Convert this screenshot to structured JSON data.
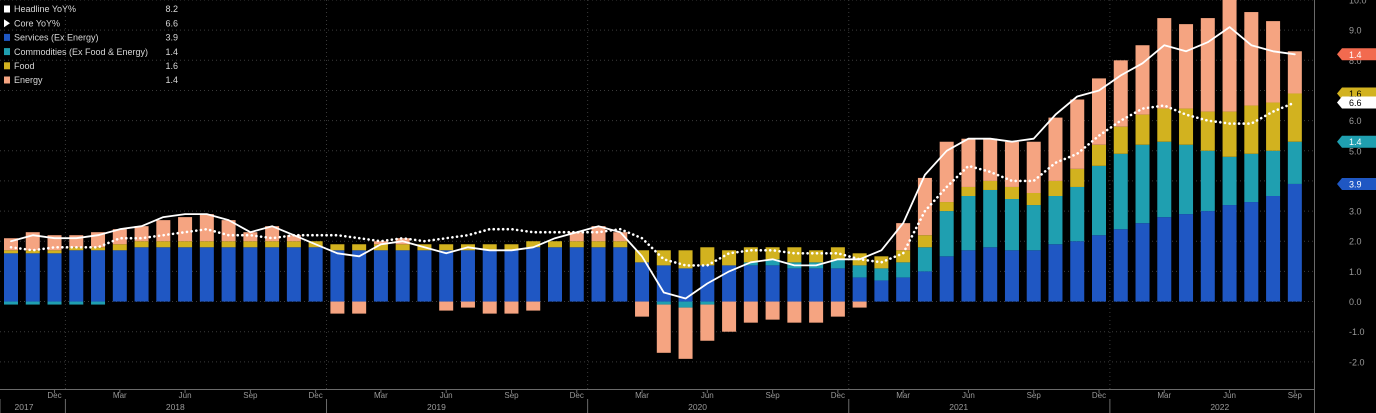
{
  "chart_data": {
    "type": "bar",
    "categories": [
      "2017-10",
      "2017-11",
      "2017-12",
      "2018-01",
      "2018-02",
      "2018-03",
      "2018-04",
      "2018-05",
      "2018-06",
      "2018-07",
      "2018-08",
      "2018-09",
      "2018-10",
      "2018-11",
      "2018-12",
      "2019-01",
      "2019-02",
      "2019-03",
      "2019-04",
      "2019-05",
      "2019-06",
      "2019-07",
      "2019-08",
      "2019-09",
      "2019-10",
      "2019-11",
      "2019-12",
      "2020-01",
      "2020-02",
      "2020-03",
      "2020-04",
      "2020-05",
      "2020-06",
      "2020-07",
      "2020-08",
      "2020-09",
      "2020-10",
      "2020-11",
      "2020-12",
      "2021-01",
      "2021-02",
      "2021-03",
      "2021-04",
      "2021-05",
      "2021-06",
      "2021-07",
      "2021-08",
      "2021-09",
      "2021-10",
      "2021-11",
      "2021-12",
      "2022-01",
      "2022-02",
      "2022-03",
      "2022-04",
      "2022-05",
      "2022-06",
      "2022-07",
      "2022-08",
      "2022-09"
    ],
    "series": [
      {
        "name": "Headline YoY%",
        "kind": "line",
        "color": "#ffffff",
        "values": [
          2.0,
          2.2,
          2.1,
          2.1,
          2.2,
          2.4,
          2.5,
          2.8,
          2.9,
          2.9,
          2.7,
          2.3,
          2.5,
          2.2,
          1.9,
          1.6,
          1.5,
          1.9,
          2.0,
          1.8,
          1.6,
          1.8,
          1.7,
          1.7,
          1.8,
          2.1,
          2.3,
          2.5,
          2.3,
          1.5,
          0.3,
          0.1,
          0.6,
          1.0,
          1.3,
          1.4,
          1.2,
          1.2,
          1.4,
          1.4,
          1.7,
          2.6,
          4.2,
          5.0,
          5.4,
          5.4,
          5.3,
          5.4,
          6.2,
          6.8,
          7.0,
          7.5,
          7.9,
          8.5,
          8.3,
          8.6,
          9.1,
          8.5,
          8.3,
          8.2
        ]
      },
      {
        "name": "Core YoY%",
        "kind": "line",
        "color": "#ffffff",
        "values": [
          1.8,
          1.7,
          1.8,
          1.8,
          1.8,
          2.1,
          2.1,
          2.2,
          2.3,
          2.4,
          2.2,
          2.2,
          2.1,
          2.2,
          2.2,
          2.2,
          2.1,
          2.0,
          2.1,
          2.0,
          2.1,
          2.2,
          2.4,
          2.4,
          2.3,
          2.3,
          2.3,
          2.3,
          2.4,
          2.1,
          1.4,
          1.2,
          1.2,
          1.6,
          1.7,
          1.7,
          1.6,
          1.6,
          1.6,
          1.4,
          1.3,
          1.6,
          3.0,
          3.8,
          4.5,
          4.3,
          4.0,
          4.0,
          4.6,
          4.9,
          5.5,
          6.0,
          6.4,
          6.5,
          6.2,
          6.0,
          5.9,
          5.9,
          6.3,
          6.6
        ]
      },
      {
        "name": "Services (Ex Energy)",
        "kind": "bar",
        "color": "#1f57c3",
        "values": [
          1.6,
          1.6,
          1.6,
          1.7,
          1.7,
          1.7,
          1.8,
          1.8,
          1.8,
          1.8,
          1.8,
          1.8,
          1.8,
          1.8,
          1.8,
          1.7,
          1.7,
          1.7,
          1.7,
          1.7,
          1.7,
          1.7,
          1.7,
          1.7,
          1.8,
          1.8,
          1.8,
          1.8,
          1.8,
          1.3,
          1.2,
          1.1,
          1.2,
          1.2,
          1.2,
          1.2,
          1.1,
          1.1,
          1.1,
          0.8,
          0.7,
          0.8,
          1.0,
          1.5,
          1.7,
          1.8,
          1.7,
          1.7,
          1.9,
          2.0,
          2.2,
          2.4,
          2.6,
          2.8,
          2.9,
          3.0,
          3.2,
          3.3,
          3.5,
          3.9
        ]
      },
      {
        "name": "Commodities (Ex Food & Energy)",
        "kind": "bar",
        "color": "#1f9fb0",
        "values": [
          -0.1,
          -0.1,
          -0.1,
          -0.1,
          -0.1,
          0.0,
          0.0,
          0.0,
          0.0,
          0.0,
          0.0,
          0.0,
          0.0,
          0.0,
          0.0,
          0.0,
          0.0,
          0.0,
          0.0,
          0.0,
          0.0,
          0.0,
          0.0,
          0.0,
          0.0,
          0.0,
          0.0,
          0.0,
          0.0,
          0.0,
          -0.1,
          -0.2,
          -0.1,
          0.0,
          0.1,
          0.2,
          0.2,
          0.2,
          0.3,
          0.4,
          0.4,
          0.5,
          0.8,
          1.5,
          1.8,
          1.9,
          1.7,
          1.5,
          1.6,
          1.8,
          2.3,
          2.5,
          2.6,
          2.5,
          2.3,
          2.0,
          1.6,
          1.6,
          1.5,
          1.4
        ]
      },
      {
        "name": "Food",
        "kind": "bar",
        "color": "#d2b21f",
        "values": [
          0.1,
          0.1,
          0.1,
          0.1,
          0.1,
          0.2,
          0.2,
          0.2,
          0.2,
          0.2,
          0.2,
          0.2,
          0.2,
          0.2,
          0.2,
          0.2,
          0.2,
          0.2,
          0.2,
          0.2,
          0.2,
          0.2,
          0.2,
          0.2,
          0.2,
          0.2,
          0.2,
          0.2,
          0.2,
          0.4,
          0.5,
          0.6,
          0.6,
          0.5,
          0.5,
          0.4,
          0.5,
          0.4,
          0.4,
          0.4,
          0.4,
          0.4,
          0.4,
          0.3,
          0.3,
          0.3,
          0.4,
          0.4,
          0.5,
          0.6,
          0.7,
          0.9,
          1.0,
          1.1,
          1.2,
          1.3,
          1.5,
          1.6,
          1.6,
          1.6
        ]
      },
      {
        "name": "Energy",
        "kind": "bar",
        "color": "#f5a481",
        "values": [
          0.4,
          0.6,
          0.5,
          0.4,
          0.5,
          0.5,
          0.5,
          0.7,
          0.8,
          0.9,
          0.7,
          0.3,
          0.5,
          0.2,
          0.0,
          -0.4,
          -0.4,
          0.1,
          0.2,
          0.0,
          -0.3,
          -0.2,
          -0.4,
          -0.4,
          -0.3,
          0.0,
          0.3,
          0.5,
          0.3,
          -0.5,
          -1.6,
          -1.7,
          -1.2,
          -1.0,
          -0.7,
          -0.6,
          -0.7,
          -0.7,
          -0.5,
          -0.2,
          0.0,
          0.9,
          1.9,
          2.0,
          1.6,
          1.4,
          1.5,
          1.7,
          2.1,
          2.3,
          2.2,
          2.2,
          2.3,
          3.0,
          2.8,
          3.1,
          3.9,
          3.1,
          2.7,
          1.4
        ]
      }
    ],
    "legend_values": {
      "Headline YoY%": "8.2",
      "Core YoY%": "6.6",
      "Services (Ex Energy)": "3.9",
      "Commodities (Ex Food & Energy)": "1.4",
      "Food": "1.6",
      "Energy": "1.4"
    },
    "ylim": [
      -2.9,
      10.0
    ],
    "y_ticks": [
      "-2.0",
      "-1.0",
      "0.0",
      "1.0",
      "2.0",
      "3.0",
      "4.0",
      "5.0",
      "6.0",
      "7.0",
      "8.0",
      "9.0",
      "10.0"
    ],
    "month_ticks": [
      {
        "index": 2,
        "label": "Dec"
      },
      {
        "index": 5,
        "label": "Mar"
      },
      {
        "index": 8,
        "label": "Jun"
      },
      {
        "index": 11,
        "label": "Sep"
      },
      {
        "index": 14,
        "label": "Dec"
      },
      {
        "index": 17,
        "label": "Mar"
      },
      {
        "index": 20,
        "label": "Jun"
      },
      {
        "index": 23,
        "label": "Sep"
      },
      {
        "index": 26,
        "label": "Dec"
      },
      {
        "index": 29,
        "label": "Mar"
      },
      {
        "index": 32,
        "label": "Jun"
      },
      {
        "index": 35,
        "label": "Sep"
      },
      {
        "index": 38,
        "label": "Dec"
      },
      {
        "index": 41,
        "label": "Mar"
      },
      {
        "index": 44,
        "label": "Jun"
      },
      {
        "index": 47,
        "label": "Sep"
      },
      {
        "index": 50,
        "label": "Dec"
      },
      {
        "index": 53,
        "label": "Mar"
      },
      {
        "index": 56,
        "label": "Jun"
      },
      {
        "index": 59,
        "label": "Sep"
      }
    ],
    "year_ticks": [
      {
        "index": 0,
        "label": "2017"
      },
      {
        "index": 7,
        "label": "2018"
      },
      {
        "index": 19,
        "label": "2019"
      },
      {
        "index": 31,
        "label": "2020"
      },
      {
        "index": 43,
        "label": "2021"
      },
      {
        "index": 55,
        "label": "2022"
      }
    ],
    "grid": true,
    "legend_position": "top-left",
    "right_axis_badges": [
      {
        "series": "Energy",
        "label": "1.4",
        "color": "#f26a4f",
        "text_color": "#ffffff",
        "at_value": 8.2
      },
      {
        "series": "Food",
        "label": "1.6",
        "color": "#d2b21f",
        "text_color": "#000000",
        "at_value": 6.9
      },
      {
        "series": "Core YoY%",
        "label": "6.6",
        "color": "#ffffff",
        "text_color": "#000000",
        "at_value": 6.6
      },
      {
        "series": "Commodities (Ex Food & Energy)",
        "label": "1.4",
        "color": "#1f9fb0",
        "text_color": "#ffffff",
        "at_value": 5.3
      },
      {
        "series": "Services (Ex Energy)",
        "label": "3.9",
        "color": "#1f57c3",
        "text_color": "#ffffff",
        "at_value": 3.9
      }
    ]
  }
}
